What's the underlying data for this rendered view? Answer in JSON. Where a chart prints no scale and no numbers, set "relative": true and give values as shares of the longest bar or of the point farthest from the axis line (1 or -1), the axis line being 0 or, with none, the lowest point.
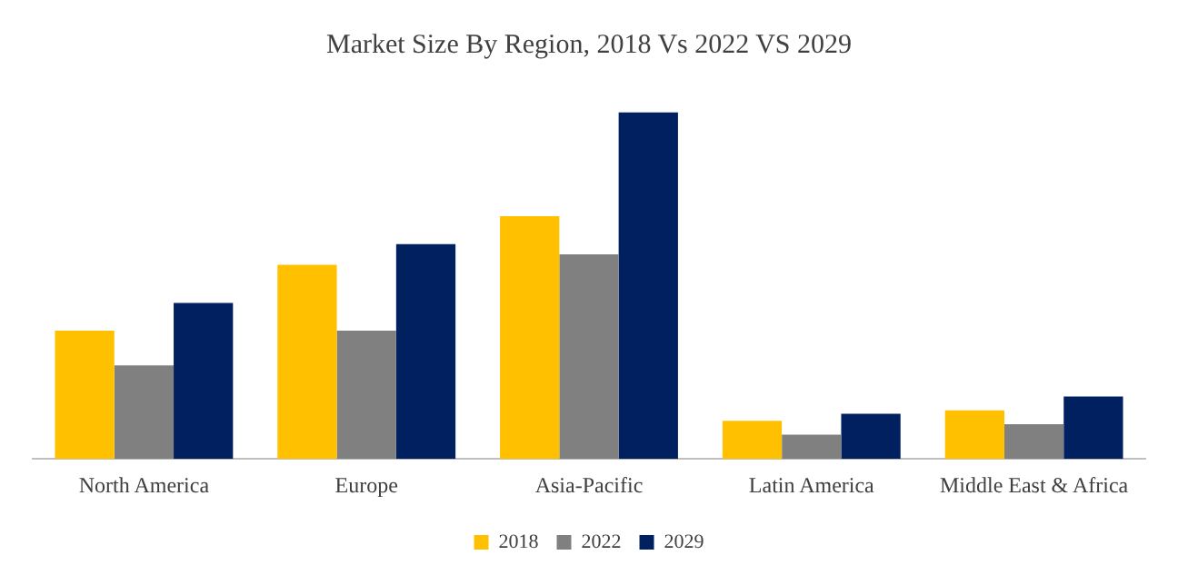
{
  "chart_data": {
    "type": "bar",
    "title": "Market Size By Region, 2018 Vs 2022 VS 2029",
    "categories": [
      "North America",
      "Europe",
      "Asia-Pacific",
      "Latin America",
      "Middle East & Africa"
    ],
    "relative": true,
    "legend": "bottom",
    "grid": false,
    "series": [
      {
        "name": "2018",
        "color": "#ffc000",
        "values": [
          0.37,
          0.56,
          0.7,
          0.11,
          0.14
        ]
      },
      {
        "name": "2022",
        "color": "#808080",
        "values": [
          0.27,
          0.37,
          0.59,
          0.07,
          0.1
        ]
      },
      {
        "name": "2029",
        "color": "#002060",
        "values": [
          0.45,
          0.62,
          1,
          0.13,
          0.18
        ]
      }
    ]
  }
}
